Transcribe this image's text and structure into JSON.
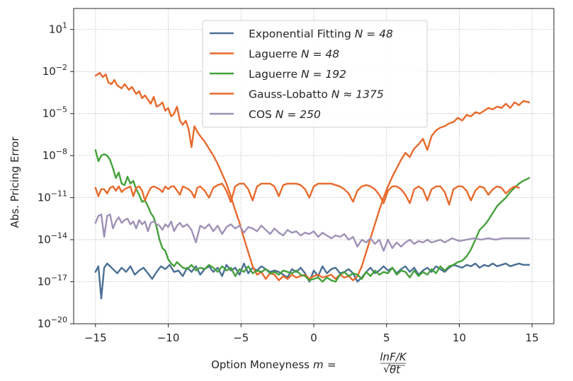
{
  "chart_data": {
    "type": "line",
    "xlabel": "Option Moneyness",
    "xlabel_formula_lhs": "m",
    "xlabel_formula_num": "lnF/K",
    "xlabel_formula_den": "θt",
    "ylabel": "Abs. Pricing Error",
    "xlim": [
      -16.5,
      16.5
    ],
    "ylim_log10": [
      -20,
      2.5
    ],
    "yscale": "log",
    "grid": true,
    "legend_position": "top-center",
    "x_ticks": [
      -15,
      -10,
      -5,
      0,
      5,
      10,
      15
    ],
    "x_tick_labels": [
      "−15",
      "−10",
      "−5",
      "0",
      "5",
      "10",
      "15"
    ],
    "y_ticks_log10": [
      -20,
      -17,
      -14,
      -11,
      -8,
      -5,
      -2,
      1
    ],
    "y_tick_bases": [
      "10",
      "10",
      "10",
      "10",
      "10",
      "10",
      "10",
      "10"
    ],
    "y_tick_exponents": [
      "−20",
      "−17",
      "−14",
      "−11",
      "−8",
      "−5",
      "−2",
      "1"
    ],
    "series": [
      {
        "name_text": "Exponential Fitting ",
        "name_formula": "N = 48",
        "color": "#4a6f94",
        "x": [
          -15,
          -14.8,
          -14.6,
          -14.4,
          -14.2,
          -14.0,
          -13.8,
          -13.5,
          -13.2,
          -12.9,
          -12.6,
          -12.3,
          -12.0,
          -11.7,
          -11.4,
          -11.1,
          -10.8,
          -10.5,
          -10.2,
          -9.9,
          -9.6,
          -9.3,
          -9.0,
          -8.7,
          -8.4,
          -8.1,
          -7.8,
          -7.5,
          -7.2,
          -6.9,
          -6.6,
          -6.3,
          -6.0,
          -5.7,
          -5.4,
          -5.1,
          -4.8,
          -4.5,
          -4.2,
          -3.9,
          -3.6,
          -3.3,
          -3.0,
          -2.7,
          -2.4,
          -2.1,
          -1.8,
          -1.5,
          -1.2,
          -0.9,
          -0.6,
          -0.3,
          0.0,
          0.3,
          0.6,
          0.9,
          1.2,
          1.5,
          1.8,
          2.1,
          2.4,
          2.7,
          3.0,
          3.3,
          3.6,
          3.9,
          4.2,
          4.5,
          4.8,
          5.1,
          5.4,
          5.7,
          6.0,
          6.3,
          6.6,
          6.9,
          7.2,
          7.5,
          7.8,
          8.1,
          8.4,
          8.7,
          9.0,
          9.3,
          9.6,
          9.9,
          10.2,
          10.5,
          10.8,
          11.1,
          11.4,
          11.7,
          12.0,
          12.3,
          12.6,
          12.9,
          13.2,
          13.5,
          13.8,
          14.1,
          14.4,
          14.8
        ],
        "log10_y": [
          -16.3,
          -15.9,
          -18.2,
          -16.0,
          -15.7,
          -15.9,
          -16.1,
          -16.4,
          -16.0,
          -16.3,
          -15.9,
          -16.5,
          -16.2,
          -16.0,
          -16.4,
          -16.8,
          -16.3,
          -15.9,
          -16.1,
          -15.8,
          -16.3,
          -16.2,
          -16.6,
          -16.0,
          -16.3,
          -15.9,
          -16.5,
          -16.1,
          -15.9,
          -16.3,
          -16.0,
          -16.6,
          -15.8,
          -16.2,
          -16.0,
          -16.5,
          -15.7,
          -16.4,
          -16.0,
          -16.2,
          -15.9,
          -16.1,
          -16.3,
          -16.2,
          -16.3,
          -16.5,
          -16.7,
          -16.1,
          -16.3,
          -16.0,
          -16.4,
          -17.0,
          -16.2,
          -16.6,
          -15.9,
          -16.4,
          -16.1,
          -16.0,
          -16.4,
          -16.3,
          -16.1,
          -16.4,
          -17.0,
          -16.7,
          -16.3,
          -16.0,
          -16.4,
          -16.2,
          -15.9,
          -16.2,
          -16.0,
          -16.4,
          -16.1,
          -15.9,
          -16.3,
          -16.0,
          -16.5,
          -16.2,
          -16.0,
          -16.3,
          -15.9,
          -16.1,
          -16.3,
          -16.0,
          -15.8,
          -15.9,
          -16.0,
          -15.8,
          -15.9,
          -15.7,
          -16.0,
          -15.8,
          -15.9,
          -15.7,
          -15.9,
          -15.8,
          -15.7,
          -15.9,
          -15.8,
          -15.7,
          -15.8,
          -15.8
        ]
      },
      {
        "name_text": "Laguerre ",
        "name_formula": "N = 48",
        "color": "#e8692c",
        "x": [
          -15.0,
          -14.7,
          -14.5,
          -14.3,
          -14.1,
          -13.9,
          -13.7,
          -13.5,
          -13.2,
          -13.0,
          -12.7,
          -12.5,
          -12.2,
          -12.0,
          -11.8,
          -11.6,
          -11.4,
          -11.2,
          -11.0,
          -10.8,
          -10.6,
          -10.4,
          -10.2,
          -10.0,
          -9.8,
          -9.6,
          -9.4,
          -9.2,
          -9.0,
          -8.8,
          -8.6,
          -8.4,
          -8.2,
          -8.0,
          -7.8,
          -7.5,
          -7.2,
          -6.9,
          -6.6,
          -6.3,
          -6.0,
          -5.7,
          -5.4,
          -5.1,
          -4.8,
          -4.5,
          -4.2,
          -3.9,
          -3.6,
          -3.3,
          -3.0,
          -2.7,
          -2.4,
          -2.1,
          -1.8,
          -1.5,
          -1.2,
          -0.9,
          -0.6,
          -0.3,
          0.0,
          0.3,
          0.6,
          0.9,
          1.2,
          1.5,
          1.8,
          2.1,
          2.4,
          2.7,
          3.0,
          3.3,
          3.6,
          3.9,
          4.2,
          4.5,
          4.8,
          5.1,
          5.4,
          5.7,
          6.0,
          6.3,
          6.6,
          6.9,
          7.2,
          7.5,
          7.8,
          8.1,
          8.4,
          8.7,
          9.0,
          9.3,
          9.6,
          9.9,
          10.2,
          10.5,
          10.8,
          11.1,
          11.4,
          11.7,
          12.0,
          12.3,
          12.6,
          12.9,
          13.2,
          13.5,
          13.8,
          14.1,
          14.4,
          14.8
        ],
        "log10_y": [
          -2.3,
          -2.1,
          -2.4,
          -2.2,
          -2.8,
          -2.9,
          -2.6,
          -3.0,
          -3.2,
          -2.9,
          -3.3,
          -3.1,
          -3.6,
          -3.4,
          -3.9,
          -3.7,
          -4.0,
          -4.3,
          -3.8,
          -4.5,
          -4.4,
          -4.2,
          -4.8,
          -4.6,
          -5.2,
          -5.0,
          -4.5,
          -5.5,
          -5.8,
          -5.5,
          -6.1,
          -7.4,
          -5.9,
          -6.3,
          -6.6,
          -7.0,
          -7.5,
          -8.0,
          -8.6,
          -9.3,
          -10.0,
          -10.9,
          -11.9,
          -12.8,
          -13.9,
          -14.9,
          -15.9,
          -16.5,
          -16.3,
          -16.8,
          -16.4,
          -16.5,
          -16.9,
          -16.6,
          -16.8,
          -16.5,
          -16.7,
          -16.6,
          -16.5,
          -16.8,
          -16.6,
          -16.5,
          -16.7,
          -16.6,
          -16.5,
          -16.8,
          -16.5,
          -16.7,
          -16.6,
          -16.9,
          -16.6,
          -15.9,
          -14.9,
          -13.9,
          -12.9,
          -11.9,
          -11.0,
          -10.2,
          -9.5,
          -8.9,
          -8.3,
          -7.8,
          -8.1,
          -7.5,
          -7.2,
          -6.8,
          -7.6,
          -6.6,
          -6.2,
          -6.0,
          -5.9,
          -5.7,
          -5.6,
          -5.3,
          -5.5,
          -5.1,
          -5.2,
          -4.9,
          -5.0,
          -4.8,
          -4.6,
          -4.7,
          -4.5,
          -4.6,
          -4.3,
          -4.6,
          -4.2,
          -4.4,
          -4.1,
          -4.2
        ]
      },
      {
        "name_text": "Laguerre ",
        "name_formula": "N = 192",
        "color": "#43a13a",
        "x": [
          -15.0,
          -14.8,
          -14.6,
          -14.4,
          -14.2,
          -14.0,
          -13.8,
          -13.6,
          -13.4,
          -13.2,
          -13.0,
          -12.8,
          -12.6,
          -12.4,
          -12.2,
          -12.0,
          -11.8,
          -11.6,
          -11.4,
          -11.2,
          -11.0,
          -10.8,
          -10.6,
          -10.4,
          -10.2,
          -10.0,
          -9.8,
          -9.6,
          -9.4,
          -9.2,
          -9.0,
          -8.7,
          -8.4,
          -8.1,
          -7.8,
          -7.5,
          -7.2,
          -6.9,
          -6.6,
          -6.3,
          -6.0,
          -5.7,
          -5.4,
          -5.1,
          -4.8,
          -4.5,
          -4.2,
          -3.9,
          -3.6,
          -3.3,
          -3.0,
          -2.7,
          -2.4,
          -2.1,
          -1.8,
          -1.5,
          -1.2,
          -0.9,
          -0.6,
          -0.3,
          0.0,
          0.3,
          0.6,
          0.9,
          1.2,
          1.5,
          1.8,
          2.1,
          2.4,
          2.7,
          3.0,
          3.3,
          3.6,
          3.9,
          4.2,
          4.5,
          4.8,
          5.1,
          5.4,
          5.7,
          6.0,
          6.3,
          6.6,
          6.9,
          7.2,
          7.5,
          7.8,
          8.1,
          8.4,
          8.7,
          9.0,
          9.3,
          9.6,
          9.9,
          10.2,
          10.5,
          10.8,
          11.1,
          11.4,
          11.7,
          12.0,
          12.3,
          12.6,
          12.9,
          13.2,
          13.5,
          13.8,
          14.1,
          14.4,
          14.8
        ],
        "log10_y": [
          -7.6,
          -8.4,
          -8.0,
          -7.9,
          -8.0,
          -8.3,
          -8.9,
          -9.6,
          -9.2,
          -10.0,
          -10.1,
          -9.5,
          -10.0,
          -9.8,
          -10.4,
          -10.8,
          -11.3,
          -11.2,
          -11.6,
          -12.1,
          -12.4,
          -13.1,
          -14.0,
          -14.6,
          -14.8,
          -15.4,
          -15.7,
          -15.9,
          -15.6,
          -15.8,
          -16.0,
          -16.1,
          -15.8,
          -16.2,
          -16.0,
          -16.1,
          -15.8,
          -16.0,
          -16.3,
          -15.9,
          -16.2,
          -16.0,
          -16.6,
          -16.1,
          -16.3,
          -15.9,
          -16.4,
          -16.2,
          -16.3,
          -16.1,
          -16.4,
          -16.3,
          -16.5,
          -16.2,
          -16.3,
          -16.4,
          -16.2,
          -16.5,
          -16.6,
          -16.9,
          -16.8,
          -16.7,
          -17.0,
          -16.7,
          -16.9,
          -17.0,
          -16.5,
          -16.3,
          -16.6,
          -16.4,
          -16.5,
          -16.8,
          -16.3,
          -16.6,
          -16.2,
          -16.5,
          -16.3,
          -16.4,
          -16.0,
          -16.5,
          -16.2,
          -16.3,
          -16.7,
          -16.2,
          -16.6,
          -16.3,
          -16.5,
          -16.1,
          -16.4,
          -15.9,
          -16.2,
          -15.9,
          -15.8,
          -15.6,
          -15.5,
          -15.2,
          -14.7,
          -14.0,
          -13.3,
          -13.0,
          -12.6,
          -12.1,
          -11.6,
          -11.3,
          -11.0,
          -10.6,
          -10.3,
          -10.0,
          -9.8,
          -9.6
        ]
      },
      {
        "name_text": "Gauss-Lobatto ",
        "name_formula": "N ≈ 1375",
        "color": "#e8692c",
        "x": [
          -15.0,
          -14.8,
          -14.6,
          -14.4,
          -14.2,
          -14.0,
          -13.8,
          -13.6,
          -13.4,
          -13.2,
          -13.0,
          -12.8,
          -12.6,
          -12.4,
          -12.2,
          -12.0,
          -11.8,
          -11.6,
          -11.4,
          -11.2,
          -11.0,
          -10.8,
          -10.6,
          -10.4,
          -10.2,
          -10.0,
          -9.8,
          -9.6,
          -9.4,
          -9.2,
          -9.0,
          -8.8,
          -8.6,
          -8.4,
          -8.2,
          -8.0,
          -7.8,
          -7.5,
          -7.2,
          -6.9,
          -6.6,
          -6.3,
          -6.0,
          -5.7,
          -5.4,
          -5.1,
          -4.8,
          -4.5,
          -4.2,
          -3.9,
          -3.6,
          -3.3,
          -3.0,
          -2.7,
          -2.4,
          -2.1,
          -1.8,
          -1.5,
          -1.2,
          -0.9,
          -0.6,
          -0.3,
          0.0,
          0.3,
          0.6,
          0.9,
          1.2,
          1.5,
          1.8,
          2.1,
          2.4,
          2.7,
          3.0,
          3.3,
          3.6,
          3.9,
          4.2,
          4.5,
          4.8,
          5.1,
          5.4,
          5.7,
          6.0,
          6.3,
          6.6,
          6.9,
          7.2,
          7.5,
          7.8,
          8.1,
          8.4,
          8.7,
          9.0,
          9.3,
          9.6,
          9.9,
          10.2,
          10.5,
          10.8,
          11.1,
          11.4,
          11.7,
          12.0,
          12.3,
          12.6,
          12.9,
          13.2,
          13.5,
          13.8,
          14.1,
          14.4,
          14.8
        ],
        "log10_y": [
          -10.3,
          -10.9,
          -10.4,
          -10.4,
          -10.7,
          -10.3,
          -10.2,
          -10.5,
          -10.2,
          -10.6,
          -10.4,
          -10.3,
          -10.2,
          -10.9,
          -10.3,
          -10.2,
          -10.5,
          -11.2,
          -10.7,
          -10.3,
          -10.2,
          -10.3,
          -10.4,
          -10.6,
          -10.2,
          -10.4,
          -10.2,
          -10.2,
          -10.5,
          -10.8,
          -10.2,
          -10.3,
          -10.4,
          -10.6,
          -11.0,
          -10.3,
          -10.2,
          -10.5,
          -11.0,
          -10.3,
          -10.1,
          -10.0,
          -10.5,
          -11.3,
          -10.2,
          -10.0,
          -10.0,
          -10.4,
          -11.2,
          -10.2,
          -10.0,
          -10.0,
          -10.0,
          -10.2,
          -10.9,
          -10.1,
          -10.0,
          -10.0,
          -10.0,
          -10.1,
          -10.4,
          -11.0,
          -10.2,
          -10.0,
          -10.0,
          -10.0,
          -10.0,
          -10.1,
          -10.2,
          -10.4,
          -10.7,
          -11.3,
          -10.5,
          -10.2,
          -10.1,
          -10.2,
          -10.4,
          -10.8,
          -11.4,
          -10.5,
          -10.2,
          -10.2,
          -10.4,
          -10.8,
          -11.4,
          -10.4,
          -10.2,
          -10.4,
          -11.2,
          -10.4,
          -10.2,
          -10.2,
          -10.6,
          -11.5,
          -10.4,
          -10.2,
          -10.2,
          -10.5,
          -11.2,
          -10.5,
          -10.2,
          -10.3,
          -10.8,
          -10.4,
          -10.2,
          -10.3,
          -10.7,
          -10.4,
          -10.2,
          -10.3
        ]
      },
      {
        "name_text": "COS ",
        "name_formula": "N = 250",
        "color": "#9e91b6",
        "x": [
          -15.0,
          -14.8,
          -14.6,
          -14.4,
          -14.2,
          -14.0,
          -13.8,
          -13.6,
          -13.4,
          -13.2,
          -13.0,
          -12.8,
          -12.6,
          -12.4,
          -12.2,
          -12.0,
          -11.8,
          -11.6,
          -11.4,
          -11.2,
          -11.0,
          -10.8,
          -10.6,
          -10.4,
          -10.2,
          -10.0,
          -9.8,
          -9.6,
          -9.4,
          -9.2,
          -9.0,
          -8.7,
          -8.4,
          -8.1,
          -7.8,
          -7.5,
          -7.2,
          -6.9,
          -6.6,
          -6.3,
          -6.0,
          -5.7,
          -5.4,
          -5.1,
          -4.8,
          -4.5,
          -4.2,
          -3.9,
          -3.6,
          -3.3,
          -3.0,
          -2.7,
          -2.4,
          -2.1,
          -1.8,
          -1.5,
          -1.2,
          -0.9,
          -0.6,
          -0.3,
          0.0,
          0.3,
          0.6,
          0.9,
          1.2,
          1.5,
          1.8,
          2.1,
          2.4,
          2.7,
          3.0,
          3.3,
          3.6,
          3.9,
          4.2,
          4.5,
          4.8,
          5.1,
          5.4,
          5.7,
          6.0,
          6.3,
          6.6,
          6.9,
          7.2,
          7.5,
          7.8,
          8.1,
          8.4,
          8.7,
          9.0,
          9.5,
          10.0,
          10.5,
          11.0,
          11.5,
          12.0,
          12.5,
          13.0,
          13.5,
          14.0,
          14.5,
          14.8
        ],
        "log10_y": [
          -12.8,
          -12.3,
          -12.2,
          -13.8,
          -12.3,
          -12.2,
          -13.2,
          -12.7,
          -12.4,
          -12.8,
          -12.6,
          -12.5,
          -12.9,
          -12.7,
          -13.2,
          -12.6,
          -12.9,
          -12.7,
          -13.4,
          -12.8,
          -12.7,
          -12.9,
          -13.0,
          -13.3,
          -12.9,
          -13.1,
          -12.7,
          -13.4,
          -13.0,
          -12.8,
          -13.1,
          -12.9,
          -13.3,
          -14.2,
          -13.0,
          -13.2,
          -12.9,
          -13.4,
          -13.0,
          -13.6,
          -13.1,
          -12.9,
          -13.2,
          -13.0,
          -13.5,
          -13.1,
          -13.2,
          -13.4,
          -13.0,
          -13.3,
          -13.6,
          -13.2,
          -13.5,
          -13.7,
          -13.3,
          -13.5,
          -13.4,
          -13.7,
          -13.5,
          -13.6,
          -13.4,
          -13.8,
          -13.5,
          -13.7,
          -13.9,
          -13.7,
          -13.8,
          -13.6,
          -14.0,
          -13.8,
          -14.5,
          -14.0,
          -14.2,
          -13.9,
          -14.3,
          -14.0,
          -14.8,
          -14.0,
          -14.6,
          -14.2,
          -14.5,
          -14.2,
          -14.0,
          -14.3,
          -14.1,
          -14.2,
          -14.0,
          -14.2,
          -14.1,
          -14.0,
          -14.2,
          -13.9,
          -14.1,
          -14.0,
          -13.9,
          -14.0,
          -13.9,
          -14.0,
          -13.9,
          -13.9,
          -13.9,
          -13.9,
          -13.9
        ]
      }
    ]
  }
}
